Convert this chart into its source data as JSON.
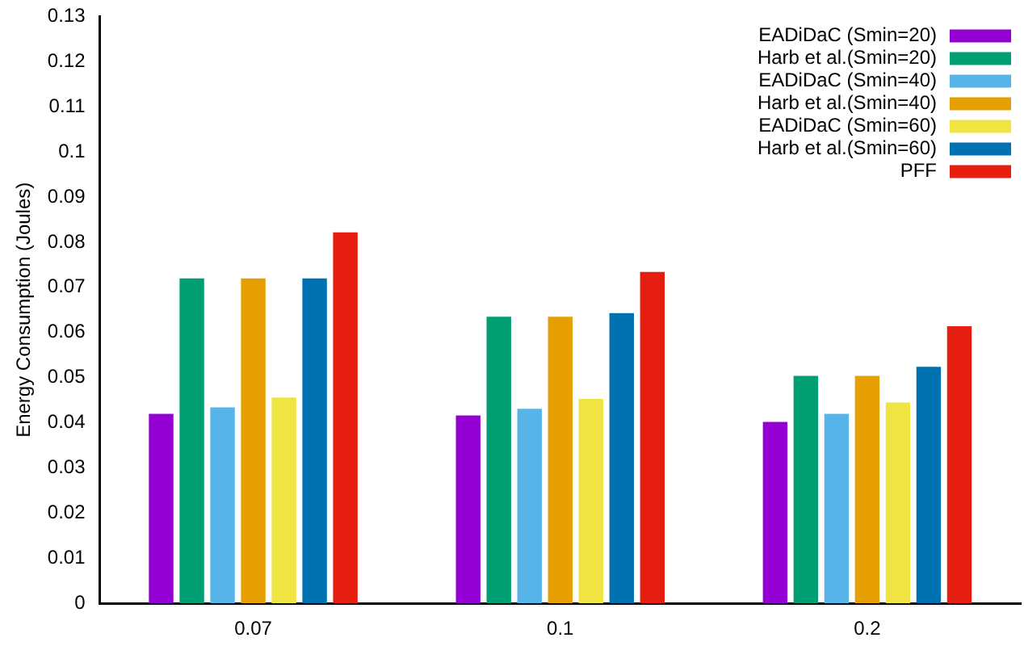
{
  "chart_data": {
    "type": "bar",
    "ylabel": "Energy Consumption (Joules)",
    "categories": [
      "0.07",
      "0.1",
      "0.2"
    ],
    "series": [
      {
        "name": "EADiDaC (Smin=20)",
        "color": "#9400d3",
        "values": [
          0.042,
          0.0416,
          0.0402
        ]
      },
      {
        "name": "Harb et al.(Smin=20)",
        "color": "#009e73",
        "values": [
          0.072,
          0.0635,
          0.0504
        ]
      },
      {
        "name": "EADiDaC (Smin=40)",
        "color": "#56b4e9",
        "values": [
          0.0434,
          0.0431,
          0.042
        ]
      },
      {
        "name": "Harb et al.(Smin=40)",
        "color": "#e69f00",
        "values": [
          0.072,
          0.0635,
          0.0504
        ]
      },
      {
        "name": "EADiDaC (Smin=60)",
        "color": "#f0e442",
        "values": [
          0.0456,
          0.0453,
          0.0445
        ]
      },
      {
        "name": "Harb et al.(Smin=60)",
        "color": "#0072b2",
        "values": [
          0.072,
          0.0643,
          0.0524
        ]
      },
      {
        "name": "PFF",
        "color": "#e51e10",
        "values": [
          0.0822,
          0.0734,
          0.0614
        ]
      }
    ],
    "ylim": [
      0,
      0.13
    ],
    "yticks": [
      0,
      0.01,
      0.02,
      0.03,
      0.04,
      0.05,
      0.06,
      0.07,
      0.08,
      0.09,
      0.1,
      0.11,
      0.12,
      0.13
    ],
    "grid": false,
    "legend": "top right"
  }
}
